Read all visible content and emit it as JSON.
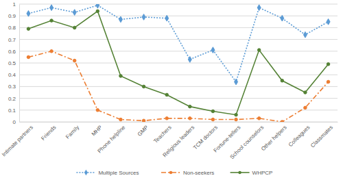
{
  "chart_data": {
    "type": "line",
    "categories": [
      "Intimate partners",
      "Friends",
      "Family",
      "MHP",
      "Phone helpline",
      "GMP",
      "Teachers",
      "Religious leaders",
      "TCM doctors",
      "Fortune-tellers",
      "School counselors",
      "Other helpers",
      "Colleagues",
      "Classmates"
    ],
    "series": [
      {
        "name": "Multiple Sources",
        "color": "#5b9bd5",
        "line_style": "dotted",
        "marker": "diamond",
        "values": [
          0.92,
          0.97,
          0.93,
          0.99,
          0.87,
          0.89,
          0.88,
          0.53,
          0.61,
          0.34,
          0.97,
          0.88,
          0.74,
          0.85
        ]
      },
      {
        "name": "Non-seekers",
        "color": "#ed7d31",
        "line_style": "dashdot",
        "marker": "circle",
        "values": [
          0.55,
          0.6,
          0.52,
          0.1,
          0.02,
          0.01,
          0.03,
          0.03,
          0.02,
          0.02,
          0.03,
          0.0,
          0.12,
          0.34
        ]
      },
      {
        "name": "WHPCP",
        "color": "#548235",
        "line_style": "solid",
        "marker": "circle",
        "values": [
          0.79,
          0.86,
          0.8,
          0.94,
          0.39,
          0.3,
          0.23,
          0.13,
          0.09,
          0.06,
          0.61,
          0.35,
          0.25,
          0.49
        ]
      }
    ],
    "ylim": [
      0,
      1
    ],
    "yticks": [
      0,
      0.1,
      0.2,
      0.3,
      0.4,
      0.5,
      0.6,
      0.7,
      0.8,
      0.9,
      1
    ],
    "grid": true,
    "legend": "bottom"
  }
}
